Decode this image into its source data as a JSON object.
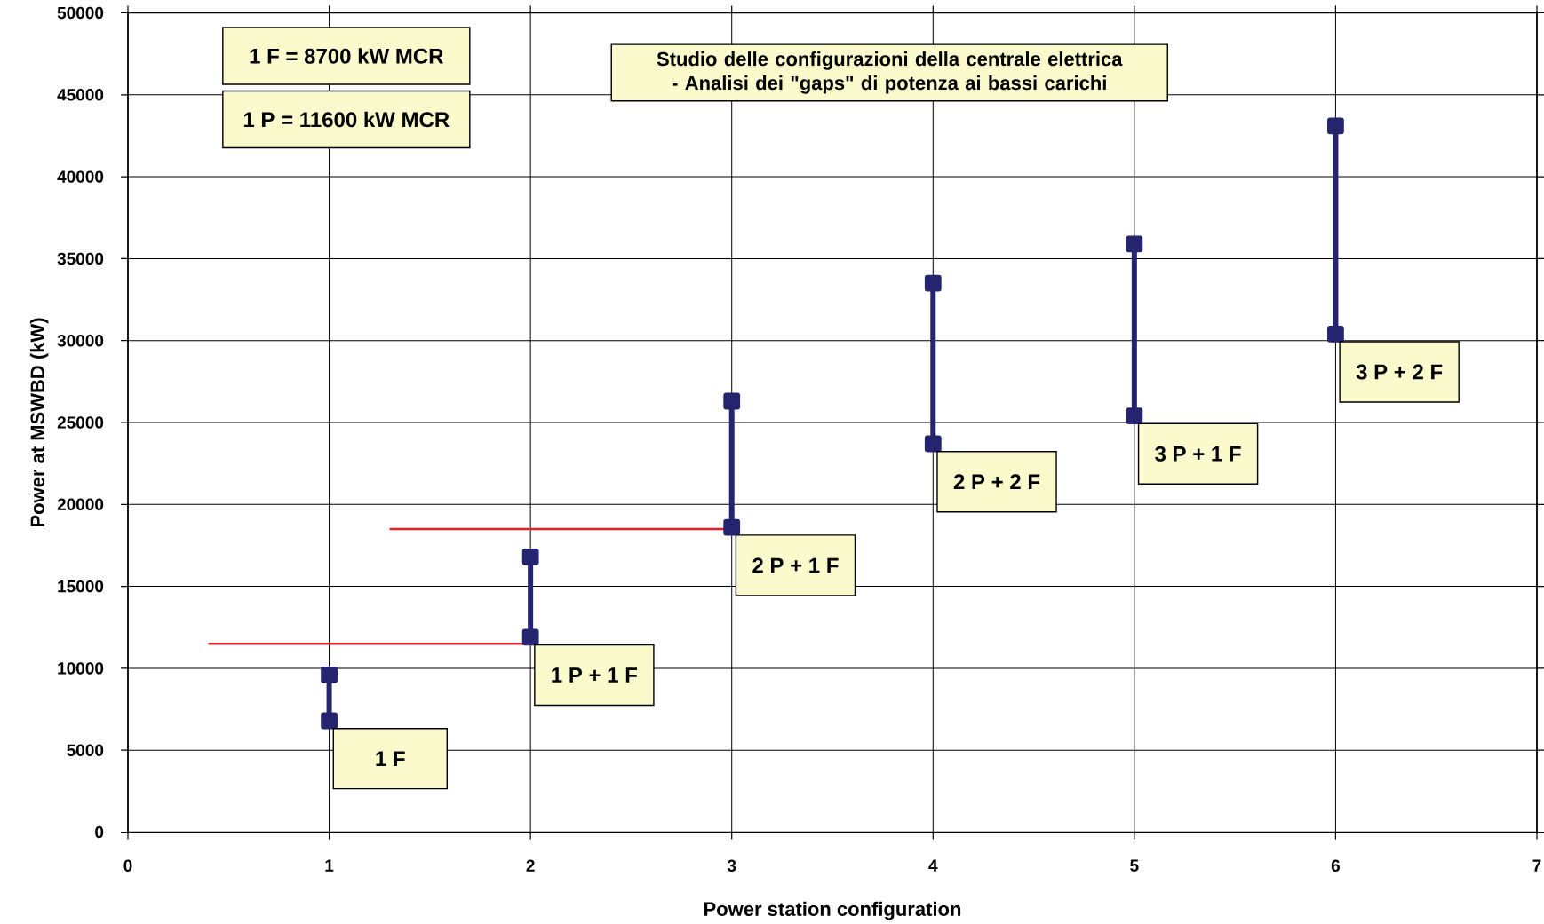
{
  "chart_data": {
    "type": "line",
    "title": "Studio delle configurazioni della centrale elettrica - Analisi dei \"gaps\" di potenza ai bassi carichi",
    "xlabel": "Power station configuration",
    "ylabel": "Power at MSWBD (kW)",
    "xlim": [
      0,
      7
    ],
    "xticks": [
      0,
      1,
      2,
      3,
      4,
      5,
      6,
      7
    ],
    "ylim": [
      0,
      50000
    ],
    "yticks": [
      0,
      5000,
      10000,
      15000,
      20000,
      25000,
      30000,
      35000,
      40000,
      45000,
      50000
    ],
    "grid": true,
    "line_style": "solid",
    "series": [
      {
        "x": [
          1,
          1
        ],
        "values": [
          6800,
          9600
        ],
        "color": "#24256e",
        "marker": "square"
      },
      {
        "x": [
          2,
          2
        ],
        "values": [
          11900,
          16800
        ],
        "color": "#24256e",
        "marker": "square"
      },
      {
        "x": [
          3,
          3
        ],
        "values": [
          18600,
          26300
        ],
        "color": "#24256e",
        "marker": "square"
      },
      {
        "x": [
          4,
          4
        ],
        "values": [
          23700,
          33500
        ],
        "color": "#24256e",
        "marker": "square"
      },
      {
        "x": [
          5,
          5
        ],
        "values": [
          25400,
          35900
        ],
        "color": "#24256e",
        "marker": "square"
      },
      {
        "x": [
          6,
          6
        ],
        "values": [
          30400,
          43100
        ],
        "color": "#24256e",
        "marker": "square"
      },
      {
        "x": [
          0.4,
          2.03
        ],
        "values": [
          11500,
          11500
        ],
        "color": "#ee1c25",
        "marker": "none"
      },
      {
        "x": [
          1.3,
          3.01
        ],
        "values": [
          18500,
          18500
        ],
        "color": "#ee1c25",
        "marker": "none"
      }
    ],
    "annotations": [
      "1 F = 8700 kW MCR",
      "1 P = 11600 kW MCR",
      {
        "text": "1 F",
        "x": 1,
        "y": 6800
      },
      {
        "text": "1 P + 1 F",
        "x": 2,
        "y": 11900
      },
      {
        "text": "2 P + 1 F",
        "x": 3,
        "y": 18600
      },
      {
        "text": "2 P + 2 F",
        "x": 4,
        "y": 23700
      },
      {
        "text": "3 P + 1 F",
        "x": 5,
        "y": 25400
      },
      {
        "text": "3 P + 2 F",
        "x": 6,
        "y": 30400
      }
    ]
  }
}
